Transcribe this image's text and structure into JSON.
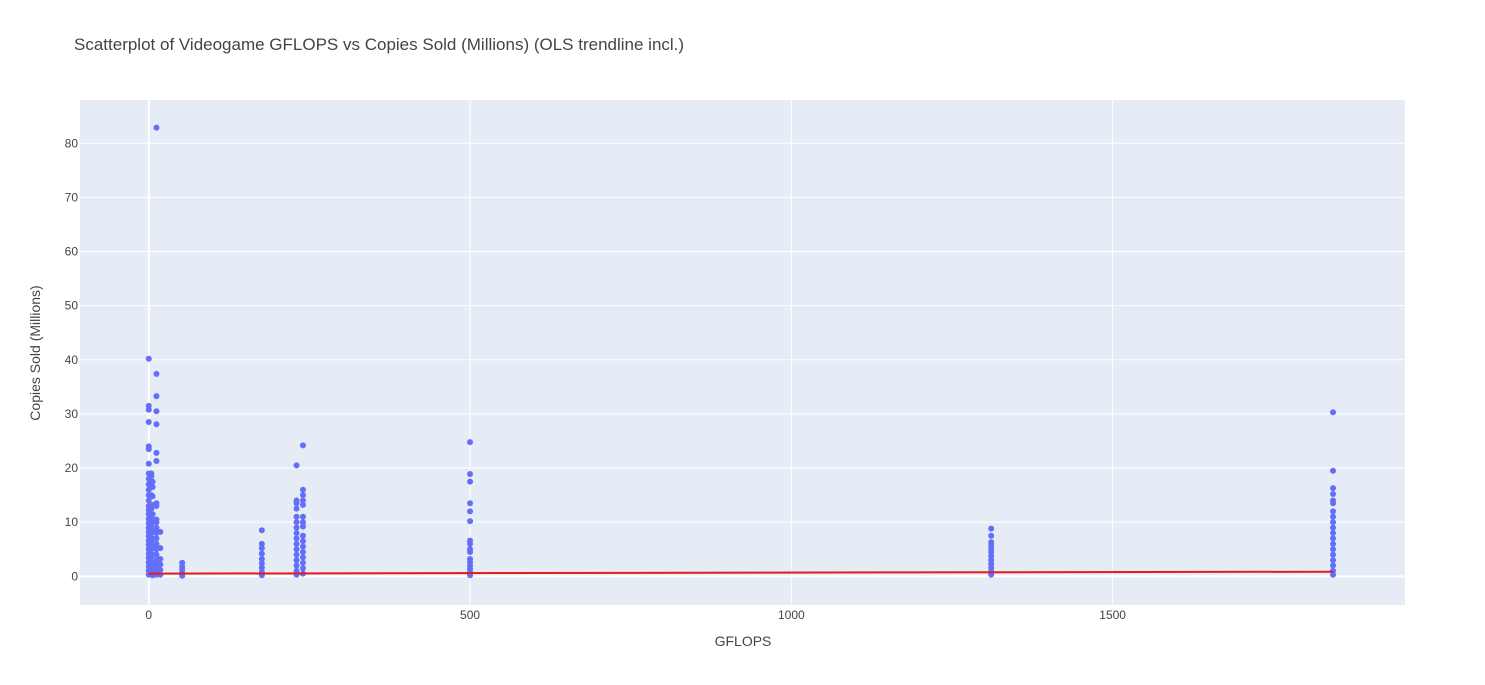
{
  "chart_data": {
    "type": "scatter",
    "title": "Scatterplot of Videogame GFLOPS vs Copies Sold (Millions) (OLS trendline incl.)",
    "xlabel": "GFLOPS",
    "ylabel": "Copies Sold (Millions)",
    "xlim": [
      -107,
      1955
    ],
    "ylim": [
      -5.3,
      88
    ],
    "x_ticks": [
      0,
      500,
      1000,
      1500
    ],
    "y_ticks": [
      0,
      10,
      20,
      30,
      40,
      50,
      60,
      70,
      80
    ],
    "x_tick_labels": [
      "0",
      "500",
      "1000",
      "1500"
    ],
    "y_tick_labels": [
      "0",
      "10",
      "20",
      "30",
      "40",
      "50",
      "60",
      "70",
      "80"
    ],
    "grid": true,
    "colors": {
      "points": "#636efa",
      "trendline": "#e8191b",
      "plot_bg": "#e5ecf6",
      "grid": "#ffffff"
    },
    "series": [
      {
        "kind": "points",
        "points": [
          [
            0,
            40.2
          ],
          [
            0,
            31.5
          ],
          [
            0,
            30.8
          ],
          [
            0,
            28.5
          ],
          [
            0,
            24.0
          ],
          [
            0,
            23.5
          ],
          [
            0,
            20.8
          ],
          [
            0,
            19.0
          ],
          [
            0,
            18.0
          ],
          [
            0,
            17.0
          ],
          [
            0,
            16.0
          ],
          [
            0,
            15.0
          ],
          [
            0,
            14.0
          ],
          [
            0,
            13.0
          ],
          [
            0,
            12.2
          ],
          [
            0,
            11.5
          ],
          [
            0,
            10.6
          ],
          [
            0,
            9.8
          ],
          [
            0,
            9.0
          ],
          [
            0,
            8.2
          ],
          [
            0,
            7.4
          ],
          [
            0,
            6.6
          ],
          [
            0,
            5.8
          ],
          [
            0,
            5.0
          ],
          [
            0,
            4.2
          ],
          [
            0,
            3.4
          ],
          [
            0,
            2.6
          ],
          [
            0,
            1.8
          ],
          [
            0,
            1.0
          ],
          [
            0,
            0.3
          ],
          [
            4,
            19.0
          ],
          [
            4,
            18.5
          ],
          [
            4,
            16.5
          ],
          [
            4,
            15.0
          ],
          [
            4,
            12.5
          ],
          [
            4,
            11.0
          ],
          [
            4,
            9.5
          ],
          [
            4,
            8.0
          ],
          [
            4,
            6.5
          ],
          [
            4,
            5.0
          ],
          [
            4,
            3.5
          ],
          [
            4,
            2.0
          ],
          [
            4,
            0.6
          ],
          [
            6,
            17.5
          ],
          [
            6,
            16.5
          ],
          [
            6,
            14.8
          ],
          [
            6,
            13.2
          ],
          [
            6,
            11.5
          ],
          [
            6,
            10.0
          ],
          [
            6,
            8.5
          ],
          [
            6,
            7.0
          ],
          [
            6,
            5.5
          ],
          [
            6,
            4.0
          ],
          [
            6,
            2.5
          ],
          [
            6,
            1.2
          ],
          [
            6,
            0.2
          ],
          [
            12,
            82.9
          ],
          [
            12,
            37.4
          ],
          [
            12,
            33.3
          ],
          [
            12,
            30.5
          ],
          [
            12,
            28.1
          ],
          [
            12,
            22.8
          ],
          [
            12,
            21.3
          ],
          [
            12,
            13.5
          ],
          [
            12,
            13.0
          ],
          [
            12,
            10.5
          ],
          [
            12,
            10.0
          ],
          [
            12,
            9.0
          ],
          [
            12,
            8.0
          ],
          [
            12,
            7.0
          ],
          [
            12,
            6.0
          ],
          [
            12,
            5.0
          ],
          [
            12,
            4.0
          ],
          [
            12,
            3.0
          ],
          [
            12,
            2.0
          ],
          [
            12,
            1.0
          ],
          [
            12,
            0.3
          ],
          [
            18,
            8.2
          ],
          [
            18,
            5.2
          ],
          [
            18,
            3.2
          ],
          [
            18,
            2.2
          ],
          [
            18,
            1.2
          ],
          [
            18,
            0.3
          ],
          [
            52,
            2.5
          ],
          [
            52,
            1.8
          ],
          [
            52,
            1.2
          ],
          [
            52,
            0.6
          ],
          [
            52,
            0.1
          ],
          [
            176,
            8.5
          ],
          [
            176,
            6.0
          ],
          [
            176,
            5.2
          ],
          [
            176,
            4.2
          ],
          [
            176,
            3.2
          ],
          [
            176,
            2.4
          ],
          [
            176,
            1.6
          ],
          [
            176,
            0.8
          ],
          [
            176,
            0.2
          ],
          [
            230,
            20.5
          ],
          [
            230,
            14.0
          ],
          [
            230,
            13.5
          ],
          [
            230,
            12.5
          ],
          [
            230,
            11.0
          ],
          [
            230,
            10.0
          ],
          [
            230,
            9.0
          ],
          [
            230,
            8.0
          ],
          [
            230,
            7.0
          ],
          [
            230,
            6.0
          ],
          [
            230,
            5.0
          ],
          [
            230,
            4.0
          ],
          [
            230,
            3.0
          ],
          [
            230,
            2.0
          ],
          [
            230,
            1.0
          ],
          [
            230,
            0.3
          ],
          [
            240,
            24.2
          ],
          [
            240,
            16.0
          ],
          [
            240,
            15.0
          ],
          [
            240,
            14.0
          ],
          [
            240,
            13.2
          ],
          [
            240,
            11.0
          ],
          [
            240,
            10.0
          ],
          [
            240,
            9.2
          ],
          [
            240,
            7.5
          ],
          [
            240,
            6.5
          ],
          [
            240,
            5.5
          ],
          [
            240,
            4.5
          ],
          [
            240,
            3.5
          ],
          [
            240,
            2.5
          ],
          [
            240,
            1.5
          ],
          [
            240,
            0.5
          ],
          [
            500,
            24.8
          ],
          [
            500,
            18.9
          ],
          [
            500,
            17.5
          ],
          [
            500,
            13.5
          ],
          [
            500,
            12.0
          ],
          [
            500,
            10.2
          ],
          [
            500,
            6.6
          ],
          [
            500,
            6.0
          ],
          [
            500,
            5.0
          ],
          [
            500,
            4.5
          ],
          [
            500,
            3.2
          ],
          [
            500,
            2.6
          ],
          [
            500,
            2.0
          ],
          [
            500,
            1.4
          ],
          [
            500,
            0.8
          ],
          [
            500,
            0.2
          ],
          [
            1311,
            8.8
          ],
          [
            1311,
            7.5
          ],
          [
            1311,
            6.3
          ],
          [
            1311,
            5.7
          ],
          [
            1311,
            5.0
          ],
          [
            1311,
            4.4
          ],
          [
            1311,
            3.7
          ],
          [
            1311,
            3.0
          ],
          [
            1311,
            2.3
          ],
          [
            1311,
            1.6
          ],
          [
            1311,
            0.9
          ],
          [
            1311,
            0.3
          ],
          [
            1843,
            30.3
          ],
          [
            1843,
            19.5
          ],
          [
            1843,
            16.3
          ],
          [
            1843,
            15.2
          ],
          [
            1843,
            14.0
          ],
          [
            1843,
            13.5
          ],
          [
            1843,
            12.0
          ],
          [
            1843,
            11.0
          ],
          [
            1843,
            10.0
          ],
          [
            1843,
            9.0
          ],
          [
            1843,
            8.0
          ],
          [
            1843,
            7.0
          ],
          [
            1843,
            6.0
          ],
          [
            1843,
            5.0
          ],
          [
            1843,
            4.0
          ],
          [
            1843,
            3.0
          ],
          [
            1843,
            2.0
          ],
          [
            1843,
            1.0
          ],
          [
            1843,
            0.3
          ]
        ]
      },
      {
        "kind": "trendline",
        "x": [
          0,
          1843
        ],
        "y": [
          0.5,
          0.85
        ]
      }
    ]
  }
}
